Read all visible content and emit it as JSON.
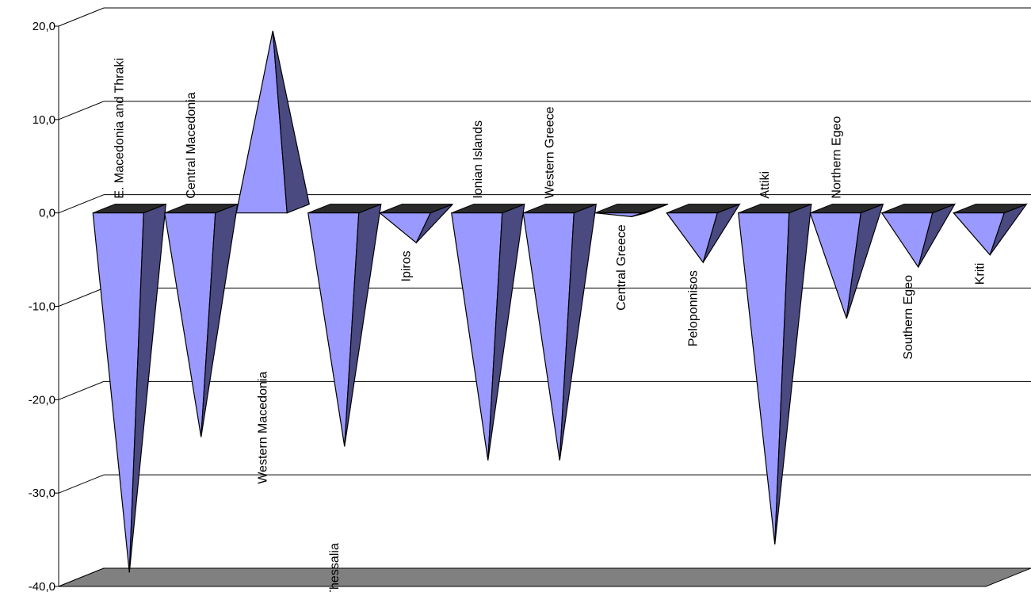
{
  "chart_data": {
    "type": "bar",
    "style": "3d-pyramid",
    "categories": [
      "E. Macedonia and Thraki",
      "Central Macedonia",
      "Western Macedonia",
      "Thessalia",
      "Ipiros",
      "Ionian Islands",
      "Western Greece",
      "Central Greece",
      "Peloponnisos",
      "Attiki",
      "Northern Egeo",
      "Southern Egeo",
      "Kriti"
    ],
    "values": [
      -38.5,
      -24.0,
      19.5,
      -25.0,
      -3.2,
      -26.5,
      -26.5,
      -0.4,
      -5.3,
      -35.5,
      -11.3,
      -5.8,
      -4.5
    ],
    "ylim": [
      -40,
      20
    ],
    "yticks": [
      {
        "value": 20,
        "label": "20,0"
      },
      {
        "value": 10,
        "label": "10,0"
      },
      {
        "value": 0,
        "label": "0,0"
      },
      {
        "value": -10,
        "label": "-10,0"
      },
      {
        "value": -20,
        "label": "-20,0"
      },
      {
        "value": -30,
        "label": "-30,0"
      },
      {
        "value": -40,
        "label": "-40,0"
      }
    ],
    "title": "",
    "xlabel": "",
    "ylabel": "",
    "grid": true,
    "legend": "none",
    "colors": {
      "front": "#9999ff",
      "side": "#4a4a80",
      "top": "#2a2a2a",
      "floor": "#808080",
      "outline": "#000000"
    }
  }
}
